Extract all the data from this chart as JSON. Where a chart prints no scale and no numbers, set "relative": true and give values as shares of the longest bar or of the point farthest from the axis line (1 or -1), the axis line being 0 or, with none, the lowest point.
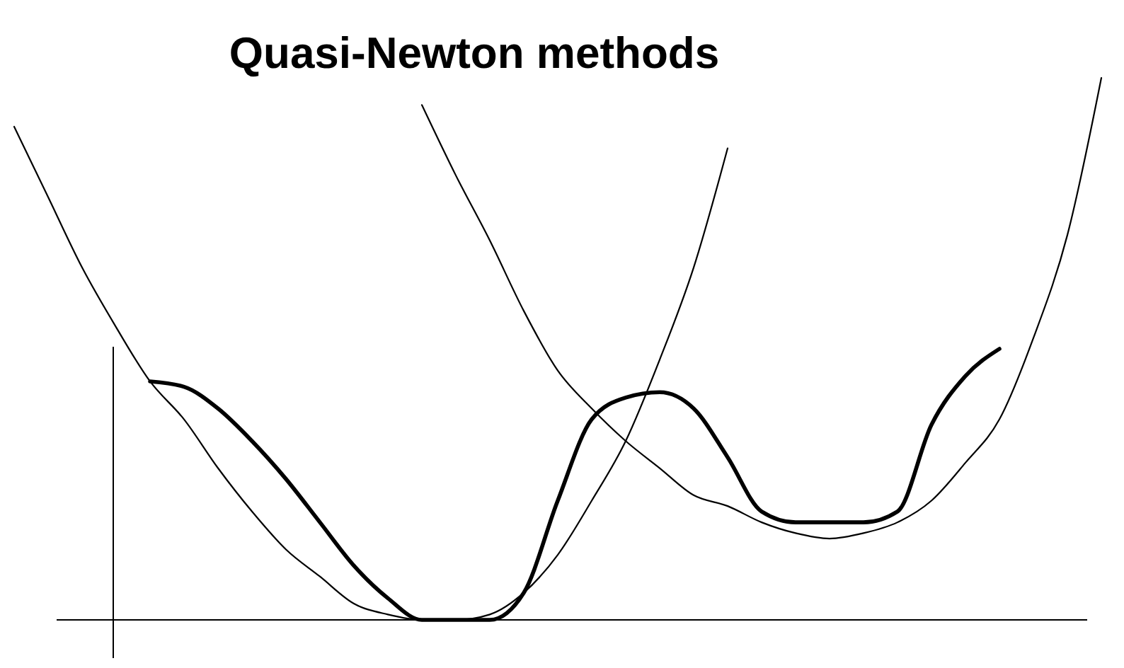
{
  "chart_data": {
    "type": "line",
    "title": "Quasi-Newton methods",
    "relative": true,
    "categories": [
      null,
      null,
      null,
      null,
      null,
      null,
      null,
      null,
      null,
      null,
      null,
      null,
      null,
      null,
      null,
      null,
      null,
      null,
      null,
      null,
      null,
      null,
      null,
      null,
      null,
      null,
      null,
      null,
      null,
      null,
      null,
      null,
      null
    ],
    "series": [
      {
        "color": "#000000",
        "values": [
          null,
          null,
          null,
          null,
          0.44,
          0.43,
          0.39,
          0.33,
          0.26,
          0.18,
          0.1,
          0.04,
          0,
          0,
          0,
          0.05,
          0.22,
          0.37,
          0.41,
          0.42,
          0.39,
          0.3,
          0.2,
          0.18,
          0.18,
          0.18,
          0.2,
          0.36,
          0.45,
          0.5,
          null,
          null,
          null
        ]
      },
      {
        "color": "#000000",
        "values": [
          0.91,
          0.78,
          0.65,
          0.54,
          0.44,
          0.37,
          0.28,
          0.2,
          0.13,
          0.08,
          0.03,
          0.01,
          0,
          0,
          0.01,
          0.05,
          0.12,
          0.22,
          0.33,
          0.48,
          0.65,
          0.87,
          null,
          null,
          null,
          null,
          null,
          null,
          null,
          null,
          null,
          null,
          null
        ]
      },
      {
        "color": "#000000",
        "values": [
          null,
          null,
          null,
          null,
          null,
          null,
          null,
          null,
          null,
          null,
          null,
          null,
          0.95,
          0.82,
          0.7,
          0.57,
          0.46,
          0.39,
          0.33,
          0.28,
          0.23,
          0.21,
          0.18,
          0.16,
          0.15,
          0.16,
          0.18,
          0.22,
          0.29,
          0.37,
          0.52,
          0.71,
          1
        ]
      }
    ]
  }
}
